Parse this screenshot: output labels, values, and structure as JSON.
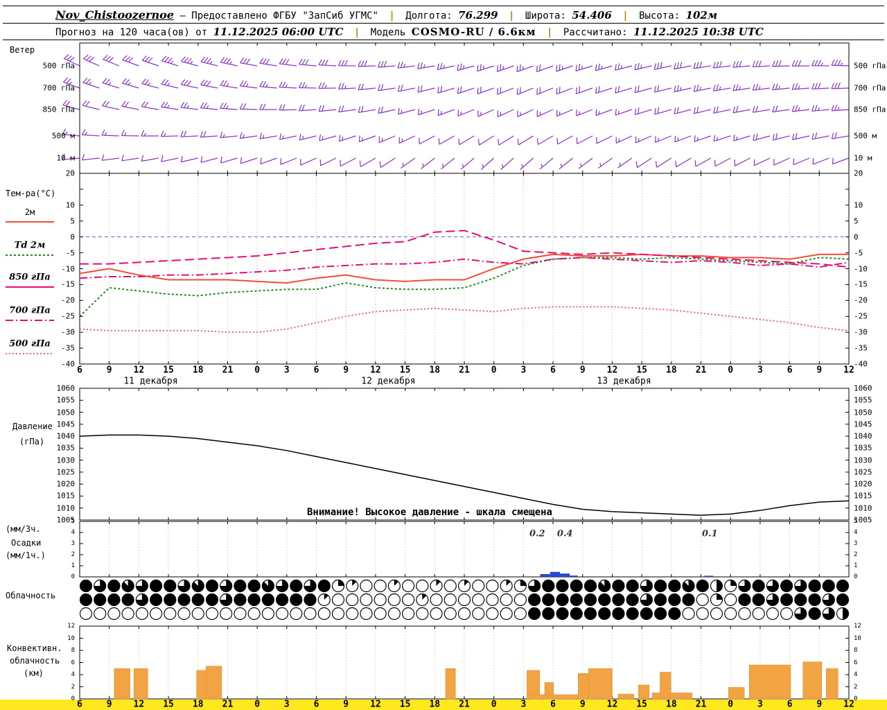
{
  "header": {
    "station": "Nov_Chistoozernoe",
    "provided_by": "— Предоставлено ФГБУ \"ЗапСиб УГМС\"",
    "sep": "|",
    "lon_label": "Долгота:",
    "lon": "76.299",
    "lat_label": "Широта:",
    "lat": "54.406",
    "alt_label": "Высота:",
    "alt": "102м",
    "forecast_label": "Прогноз на 120 часа(ов) от",
    "forecast_time": "11.12.2025 06:00 UTC",
    "model_label": "Модель",
    "model": "COSMO-RU / 6.6км",
    "calc_label": "Рассчитано:",
    "calc_time": "11.12.2025 10:38 UTC"
  },
  "left_labels": {
    "wind_title": "Ветер",
    "temp_title": "Тем-ра(°C)",
    "pressure_line1": "Давление",
    "pressure_line2": "(гПа)",
    "precip_line1": "(мм/3ч.",
    "precip_line2": "Осадки",
    "precip_line3": "(мм/1ч.)",
    "cloud_title": "Облачность",
    "conv_line1": "Конвективн.",
    "conv_line2": "облачность",
    "conv_line3": "(км)"
  },
  "colors": {
    "wind": "#8b2fc9",
    "t2m": "#f04e37",
    "dewpoint": "#1f8a1f",
    "t850": "#e60a78",
    "t500": "#f2559e",
    "pressure": "#000000",
    "precip": "#2a46d4",
    "conv": "#f2a445",
    "conv_edge": "#d88a1d",
    "band": "#ffe81e",
    "grid": "#c9bd88",
    "zero_line": "#4466dd",
    "separator": "#c77c00"
  },
  "chart_data": [
    {
      "type": "line",
      "name": "temperature",
      "title": "Тем-ра(°C)",
      "time_step_hours": 3,
      "x_ticks": [
        "6",
        "9",
        "12",
        "15",
        "18",
        "21",
        "0",
        "3",
        "6",
        "9",
        "12",
        "15",
        "18",
        "21",
        "0",
        "3",
        "6",
        "9",
        "12",
        "15",
        "18",
        "21",
        "0",
        "3",
        "6",
        "9",
        "12"
      ],
      "x_dates": [
        {
          "text": "11 декабря",
          "h": 7.2
        },
        {
          "text": "12 декабря",
          "h": 31.3
        },
        {
          "text": "13 декабря",
          "h": 55.2
        }
      ],
      "ylim": [
        -40,
        20
      ],
      "ytop_label": "20",
      "yticks": [
        10,
        5,
        0,
        -5,
        -10,
        -15,
        -20,
        -25,
        -30,
        -35,
        -40
      ],
      "series": [
        {
          "name": "2м",
          "color": "#f04e37",
          "dash": "",
          "values": [
            -11.5,
            -10,
            -12,
            -13.5,
            -13.5,
            -13.5,
            -14,
            -14.5,
            -13,
            -12,
            -13.5,
            -14,
            -13.5,
            -13.5,
            -10,
            -7,
            -5.5,
            -6,
            -6,
            -5.5,
            -6,
            -6,
            -6.5,
            -6.5,
            -7,
            -5.5,
            -5.5
          ]
        },
        {
          "name": "Td 2м",
          "color": "#1f8a1f",
          "dash": "3,3",
          "values": [
            -25,
            -16,
            -17,
            -18,
            -18.5,
            -17.5,
            -17,
            -16.5,
            -16.5,
            -14.5,
            -16,
            -16.5,
            -16.5,
            -16,
            -13,
            -9,
            -7,
            -6.5,
            -6.5,
            -7,
            -6.5,
            -7,
            -7.5,
            -8,
            -8.5,
            -6.5,
            -7
          ]
        },
        {
          "name": "850 гПа",
          "color": "#e60a78",
          "dash": "13,6",
          "legend_dash": "",
          "values": [
            -8.5,
            -8.5,
            -8,
            -7.5,
            -7,
            -6.5,
            -6,
            -5,
            -4,
            -3,
            -2,
            -1.5,
            1.5,
            2,
            -1,
            -4.5,
            -5,
            -5.5,
            -5,
            -5.5,
            -6,
            -6.5,
            -7,
            -7.5,
            -8,
            -8.5,
            -9.5
          ]
        },
        {
          "name": "700 гПа",
          "color": "#e60a78",
          "dash": "11,4,2,4",
          "values": [
            -13,
            -12.5,
            -12.5,
            -12,
            -12,
            -11.5,
            -11,
            -10.5,
            -9.5,
            -9,
            -8.5,
            -8.5,
            -8,
            -7,
            -8,
            -8.5,
            -7,
            -6.5,
            -7,
            -7.5,
            -8,
            -7.5,
            -8,
            -9,
            -8.5,
            -9.5,
            -8
          ]
        },
        {
          "name": "500 гПа",
          "color": "#f2559e",
          "dash": "2,3",
          "values": [
            -29,
            -29.5,
            -29.5,
            -29.5,
            -29.5,
            -30,
            -30,
            -29,
            -27,
            -25,
            -23.5,
            -23,
            -22.5,
            -23,
            -23.5,
            -22.5,
            -22,
            -22,
            -22,
            -22.5,
            -23,
            -24,
            -25,
            -26,
            -27,
            -28.5,
            -29.5
          ]
        }
      ]
    },
    {
      "type": "line",
      "name": "pressure",
      "ylabel": "Давление (гПа)",
      "ylim": [
        1005,
        1060
      ],
      "yticks": [
        1060,
        1055,
        1050,
        1045,
        1040,
        1035,
        1030,
        1025,
        1020,
        1015,
        1010,
        1005
      ],
      "values": [
        1040,
        1040.5,
        1040.5,
        1040,
        1039,
        1037.5,
        1036,
        1034,
        1031.5,
        1029,
        1026.5,
        1024,
        1021.5,
        1019,
        1016.5,
        1014,
        1011.5,
        1009.5,
        1008.5,
        1008,
        1007.5,
        1007,
        1007.5,
        1009,
        1011,
        1012.5,
        1013
      ],
      "warning": "Внимание! Высокое давление - шкала смещена"
    },
    {
      "type": "bar",
      "name": "precipitation",
      "ylabel": "Осадки (мм/3ч., мм/1ч.)",
      "ylim": [
        0,
        5
      ],
      "yticks": [
        5,
        4,
        3,
        2,
        1,
        0
      ],
      "bars": [
        {
          "h": 47.2,
          "w": 1.0,
          "v": 0.25
        },
        {
          "h": 48.2,
          "w": 1.0,
          "v": 0.45
        },
        {
          "h": 49.2,
          "w": 1.0,
          "v": 0.3
        },
        {
          "h": 50.1,
          "w": 0.8,
          "v": 0.12
        },
        {
          "h": 63.8,
          "w": 0.9,
          "v": 0.1
        }
      ],
      "value_labels": [
        {
          "h": 46.4,
          "text": "0.2"
        },
        {
          "h": 49.2,
          "text": "0.4"
        },
        {
          "h": 63.9,
          "text": "0.1"
        }
      ]
    },
    {
      "type": "heatmap",
      "name": "cloudiness",
      "units": "octas",
      "rows": [
        [
          8,
          6,
          8,
          7,
          6,
          8,
          8,
          6,
          7,
          8,
          6,
          8,
          8,
          7,
          6,
          8,
          6,
          8,
          2,
          1,
          0,
          0,
          1,
          0,
          0,
          1,
          0,
          1,
          0,
          0,
          1,
          2,
          6,
          8,
          8,
          8,
          8,
          7,
          8,
          8,
          6,
          8,
          8,
          7,
          8,
          4,
          2,
          6,
          8,
          6,
          8,
          6,
          8,
          8,
          8
        ],
        [
          8,
          8,
          8,
          8,
          6,
          8,
          8,
          8,
          8,
          8,
          6,
          8,
          8,
          8,
          8,
          8,
          8,
          1,
          0,
          0,
          0,
          0,
          0,
          0,
          1,
          0,
          0,
          0,
          0,
          0,
          0,
          0,
          8,
          8,
          8,
          8,
          8,
          8,
          8,
          8,
          6,
          8,
          8,
          8,
          0,
          2,
          0,
          8,
          8,
          6,
          8,
          8,
          8,
          6,
          8
        ],
        [
          0,
          0,
          0,
          0,
          0,
          0,
          0,
          0,
          0,
          0,
          0,
          0,
          0,
          0,
          0,
          0,
          0,
          0,
          0,
          0,
          0,
          0,
          0,
          0,
          0,
          0,
          0,
          0,
          0,
          0,
          0,
          0,
          8,
          8,
          8,
          8,
          8,
          8,
          8,
          8,
          8,
          8,
          8,
          0,
          0,
          0,
          0,
          0,
          0,
          0,
          0,
          6,
          8,
          6,
          4
        ]
      ]
    },
    {
      "type": "bar",
      "name": "convective_cloudiness",
      "ylabel": "Конвективн. облачность (км)",
      "ylim": [
        0,
        12
      ],
      "yticks": [
        12,
        10,
        8,
        6,
        4,
        2,
        0
      ],
      "bars": [
        {
          "h": 4.3,
          "w": 1.6,
          "v": 5.0
        },
        {
          "h": 6.2,
          "w": 1.4,
          "v": 5.0
        },
        {
          "h": 12.4,
          "w": 1.1,
          "v": 4.7
        },
        {
          "h": 13.6,
          "w": 1.6,
          "v": 5.4
        },
        {
          "h": 37.6,
          "w": 1.0,
          "v": 5.0
        },
        {
          "h": 46.0,
          "w": 1.3,
          "v": 4.7
        },
        {
          "h": 47.6,
          "w": 0.9,
          "v": 2.7
        },
        {
          "h": 48.6,
          "w": 5.5,
          "v": 0.7
        },
        {
          "h": 51.2,
          "w": 1.3,
          "v": 4.2
        },
        {
          "h": 52.8,
          "w": 2.4,
          "v": 5.0
        },
        {
          "h": 55.4,
          "w": 1.6,
          "v": 0.8
        },
        {
          "h": 57.2,
          "w": 1.1,
          "v": 2.3
        },
        {
          "h": 58.5,
          "w": 0.9,
          "v": 1.0
        },
        {
          "h": 59.4,
          "w": 1.1,
          "v": 4.4
        },
        {
          "h": 61.0,
          "w": 2.2,
          "v": 1.0
        },
        {
          "h": 66.6,
          "w": 1.6,
          "v": 1.9
        },
        {
          "h": 70.0,
          "w": 4.2,
          "v": 5.6
        },
        {
          "h": 74.3,
          "w": 1.9,
          "v": 6.1
        },
        {
          "h": 76.3,
          "w": 1.2,
          "v": 5.0
        }
      ]
    },
    {
      "type": "wind-barbs",
      "name": "wind",
      "title": "Ветер",
      "levels": [
        {
          "name": "500 гПа",
          "dir": [
            295,
            293,
            290,
            288,
            285,
            283,
            280,
            278,
            275,
            272,
            268,
            264,
            260,
            256,
            252,
            250,
            250,
            252,
            254,
            256,
            258,
            260,
            263,
            266,
            268,
            270,
            272
          ],
          "speed": [
            30,
            30,
            32,
            32,
            34,
            34,
            32,
            32,
            30,
            30,
            28,
            28,
            26,
            26,
            24,
            24,
            22,
            24,
            26,
            26,
            28,
            28,
            30,
            30,
            32,
            32,
            34
          ]
        },
        {
          "name": "700 гПа",
          "dir": [
            290,
            288,
            286,
            284,
            282,
            280,
            277,
            274,
            271,
            268,
            264,
            260,
            256,
            252,
            250,
            248,
            248,
            250,
            252,
            254,
            256,
            258,
            260,
            262,
            264,
            266,
            268
          ],
          "speed": [
            24,
            24,
            26,
            26,
            28,
            28,
            26,
            26,
            24,
            24,
            22,
            22,
            20,
            20,
            18,
            18,
            18,
            20,
            20,
            22,
            22,
            24,
            24,
            26,
            26,
            28,
            28
          ]
        },
        {
          "name": "850 гПа",
          "dir": [
            285,
            283,
            281,
            279,
            277,
            275,
            272,
            269,
            266,
            263,
            260,
            256,
            252,
            249,
            246,
            245,
            246,
            248,
            250,
            252,
            254,
            256,
            258,
            260,
            262,
            264,
            266
          ],
          "speed": [
            20,
            20,
            22,
            22,
            24,
            24,
            22,
            22,
            20,
            20,
            18,
            18,
            16,
            16,
            14,
            14,
            14,
            16,
            16,
            18,
            18,
            20,
            20,
            22,
            22,
            24,
            24
          ]
        },
        {
          "name": "500 м",
          "dir": [
            275,
            273,
            271,
            269,
            267,
            265,
            262,
            259,
            256,
            253,
            250,
            246,
            242,
            240,
            238,
            238,
            240,
            242,
            244,
            246,
            248,
            250,
            252,
            254,
            256,
            258,
            260
          ],
          "speed": [
            15,
            15,
            16,
            16,
            18,
            18,
            16,
            16,
            15,
            15,
            14,
            14,
            12,
            12,
            10,
            10,
            10,
            12,
            12,
            14,
            14,
            16,
            16,
            18,
            18,
            20,
            20
          ]
        },
        {
          "name": "10 м",
          "dir": [
            265,
            263,
            261,
            259,
            257,
            255,
            252,
            249,
            246,
            243,
            240,
            236,
            232,
            230,
            228,
            228,
            230,
            232,
            234,
            236,
            238,
            240,
            242,
            244,
            246,
            248,
            250
          ],
          "speed": [
            10,
            10,
            12,
            12,
            12,
            12,
            10,
            10,
            8,
            8,
            8,
            8,
            6,
            6,
            5,
            5,
            5,
            6,
            6,
            8,
            8,
            10,
            10,
            12,
            12,
            12,
            12
          ]
        }
      ]
    }
  ]
}
